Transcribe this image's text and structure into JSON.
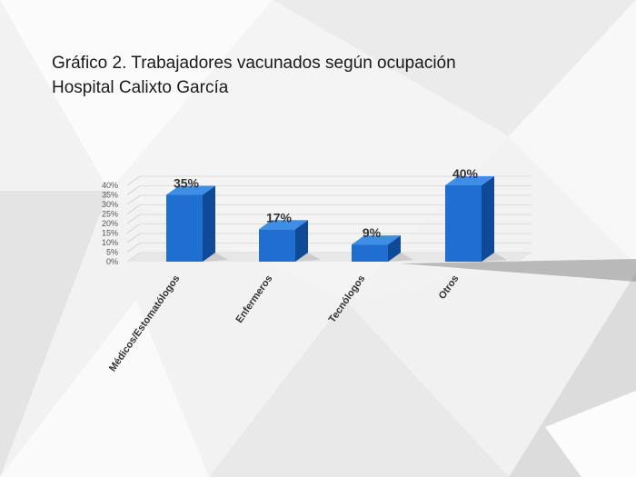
{
  "slide": {
    "title_line1": "Gráfico 2. Trabajadores vacunados según ocupación",
    "title_line2": "Hospital Calixto García"
  },
  "colors": {
    "bar_front": "#1f6fd0",
    "bar_side": "#0e4a97",
    "bar_top": "#3f8ee6",
    "label": "#333333",
    "tick": "#555555"
  },
  "chart_data": {
    "type": "bar",
    "title": "",
    "xlabel": "",
    "ylabel": "",
    "categories": [
      "Médicos/Estomatólogos",
      "Enfermeros",
      "Tecnólogos",
      "Otros"
    ],
    "values": [
      35,
      17,
      9,
      40
    ],
    "data_labels": [
      "35%",
      "17%",
      "9%",
      "40%"
    ],
    "yticks": [
      "0%",
      "5%",
      "10%",
      "15%",
      "20%",
      "25%",
      "30%",
      "35%",
      "40%"
    ],
    "ylim": [
      0,
      40
    ],
    "grid": true,
    "legend": "none",
    "style": "3d-column"
  }
}
